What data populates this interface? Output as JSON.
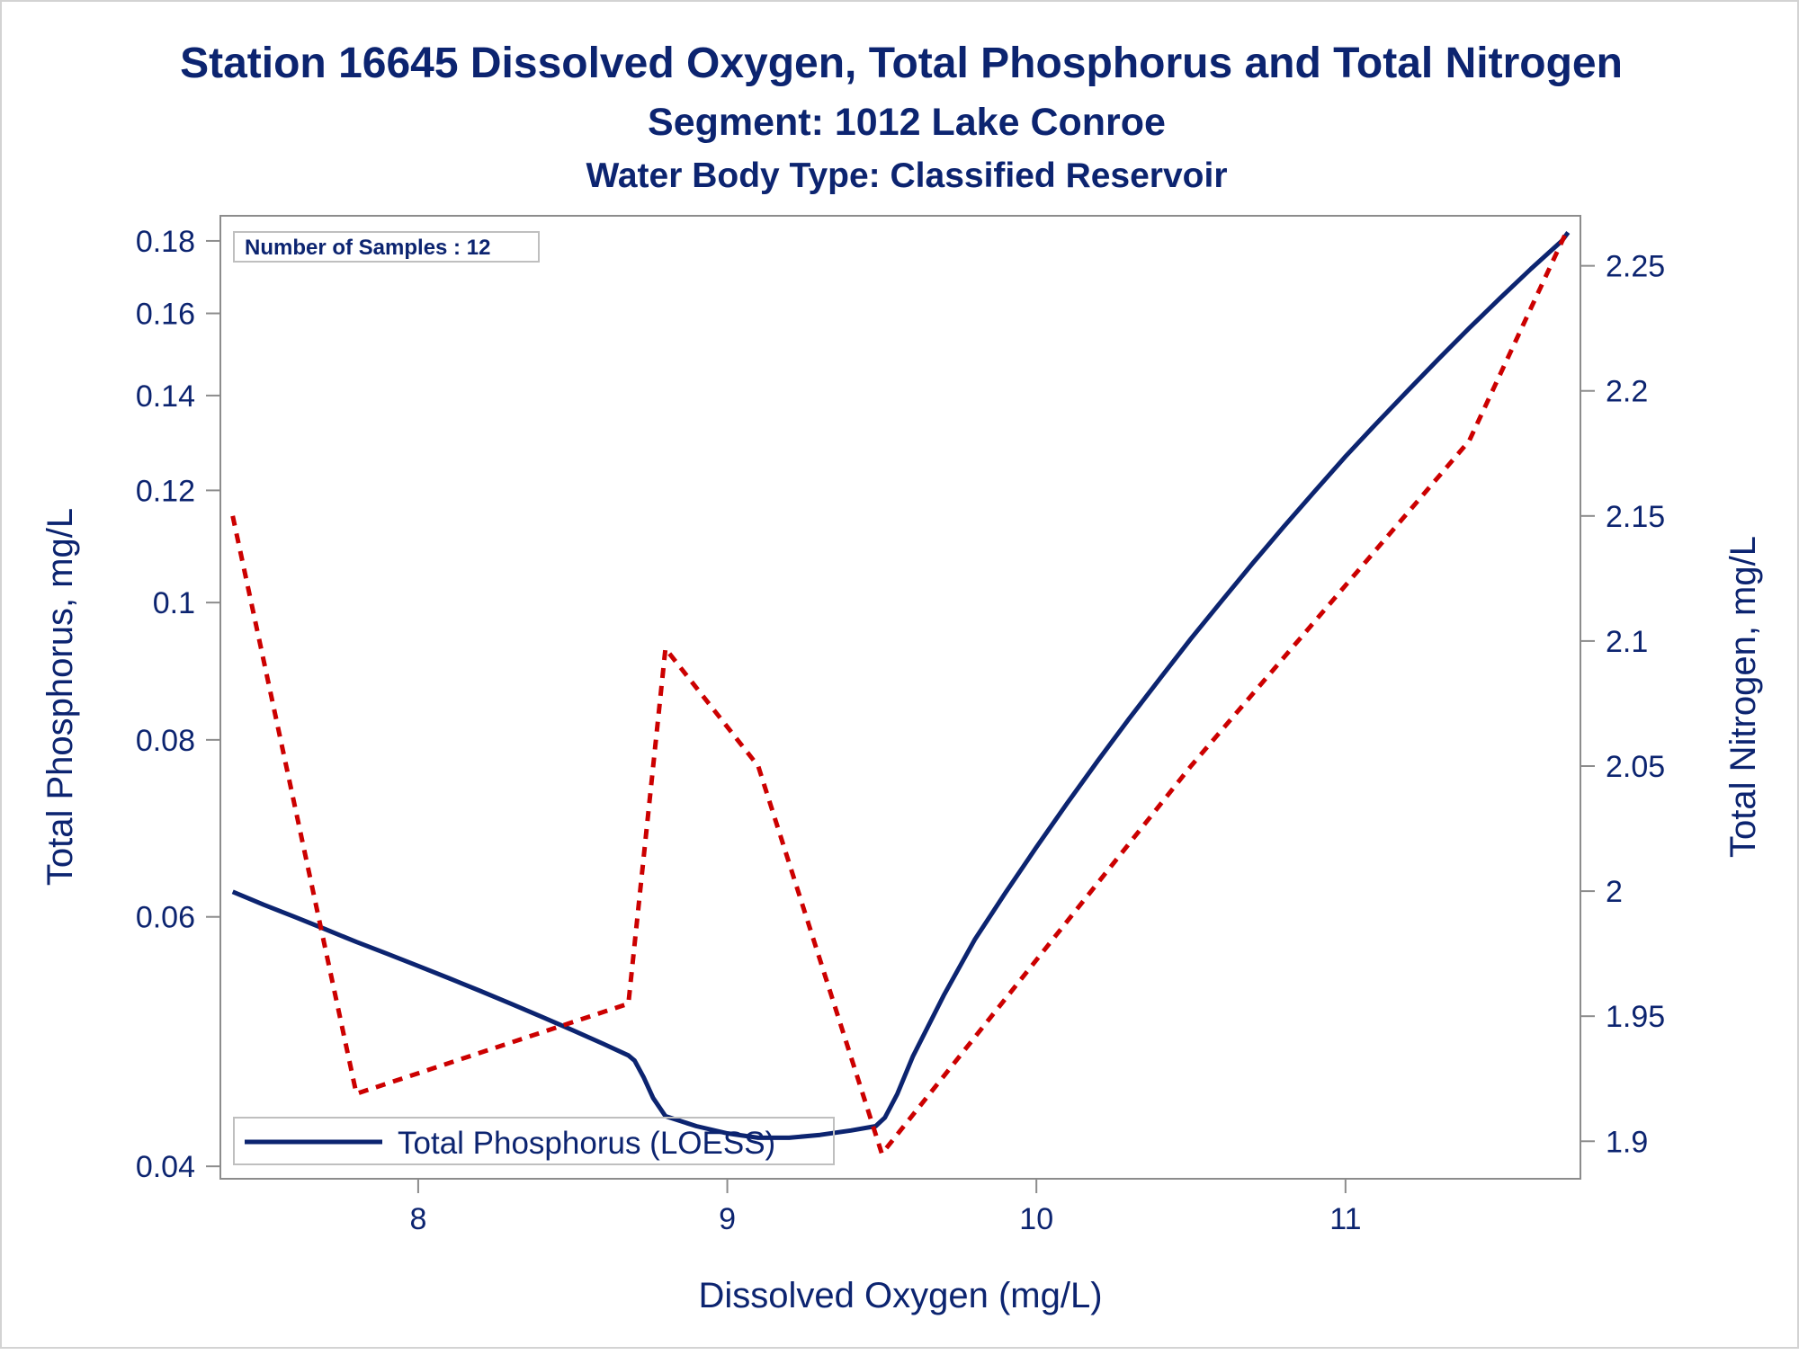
{
  "titles": {
    "line1": "Station 16645  Dissolved Oxygen, Total Phosphorus and Total Nitrogen",
    "line2": "Segment: 1012  Lake Conroe",
    "line3": "Water Body Type: Classified Reservoir"
  },
  "inset": {
    "samples_text": "Number of Samples : 12"
  },
  "legend": {
    "label": "Total Phosphorus (LOESS)"
  },
  "colors": {
    "text": "#0c2470",
    "phosphorus": "#0c2470",
    "nitrogen": "#cc0000",
    "axis": "#8c8c8c"
  },
  "chart_data": {
    "type": "line",
    "xlabel": "Dissolved Oxygen (mg/L)",
    "ylabel_left": "Total Phosphorus, mg/L",
    "ylabel_right": "Total Nitrogen, mg/L",
    "xlim": [
      7.36,
      11.76
    ],
    "x_ticks": [
      8,
      9,
      10,
      11
    ],
    "y_left_scale": "log",
    "y_left_ticks": [
      0.04,
      0.06,
      0.08,
      0.1,
      0.12,
      0.14,
      0.16,
      0.18
    ],
    "y_left_lim": [
      0.0392,
      0.1875
    ],
    "y_right_lim": [
      1.885,
      2.27
    ],
    "y_right_ticks": [
      1.9,
      1.95,
      2.0,
      2.05,
      2.1,
      2.15,
      2.2,
      2.25
    ],
    "grid": false,
    "legend_position": "bottom-left",
    "series": [
      {
        "name": "Total Phosphorus (LOESS)",
        "axis": "left",
        "style": "solid",
        "points": [
          [
            7.4,
            0.0625
          ],
          [
            7.5,
            0.0612
          ],
          [
            7.6,
            0.06
          ],
          [
            7.7,
            0.0588
          ],
          [
            7.8,
            0.0576
          ],
          [
            7.9,
            0.0565
          ],
          [
            8.0,
            0.0554
          ],
          [
            8.1,
            0.0543
          ],
          [
            8.2,
            0.0532
          ],
          [
            8.3,
            0.0521
          ],
          [
            8.4,
            0.051
          ],
          [
            8.5,
            0.0499
          ],
          [
            8.6,
            0.0488
          ],
          [
            8.68,
            0.0479
          ],
          [
            8.7,
            0.0475
          ],
          [
            8.73,
            0.0462
          ],
          [
            8.76,
            0.0447
          ],
          [
            8.8,
            0.0434
          ],
          [
            8.9,
            0.0427
          ],
          [
            9.0,
            0.0422
          ],
          [
            9.1,
            0.0419
          ],
          [
            9.2,
            0.0419
          ],
          [
            9.3,
            0.0421
          ],
          [
            9.4,
            0.0424
          ],
          [
            9.48,
            0.0427
          ],
          [
            9.51,
            0.0433
          ],
          [
            9.55,
            0.045
          ],
          [
            9.6,
            0.0478
          ],
          [
            9.7,
            0.0528
          ],
          [
            9.8,
            0.0578
          ],
          [
            9.9,
            0.0624
          ],
          [
            10.0,
            0.0672
          ],
          [
            10.1,
            0.0722
          ],
          [
            10.2,
            0.0774
          ],
          [
            10.3,
            0.0828
          ],
          [
            10.4,
            0.0884
          ],
          [
            10.5,
            0.0943
          ],
          [
            10.6,
            0.1003
          ],
          [
            10.7,
            0.1066
          ],
          [
            10.8,
            0.1131
          ],
          [
            10.9,
            0.1198
          ],
          [
            11.0,
            0.1268
          ],
          [
            11.1,
            0.1338
          ],
          [
            11.2,
            0.141
          ],
          [
            11.3,
            0.1485
          ],
          [
            11.4,
            0.1562
          ],
          [
            11.5,
            0.164
          ],
          [
            11.6,
            0.172
          ],
          [
            11.7,
            0.18
          ],
          [
            11.72,
            0.1825
          ]
        ]
      },
      {
        "name": "",
        "axis": "right",
        "style": "dashed",
        "points": [
          [
            7.4,
            2.15
          ],
          [
            7.8,
            1.919
          ],
          [
            8.68,
            1.955
          ],
          [
            8.8,
            2.097
          ],
          [
            9.1,
            2.05
          ],
          [
            9.5,
            1.895
          ],
          [
            10.5,
            2.05
          ],
          [
            11.4,
            2.18
          ],
          [
            11.72,
            2.265
          ]
        ]
      }
    ]
  }
}
